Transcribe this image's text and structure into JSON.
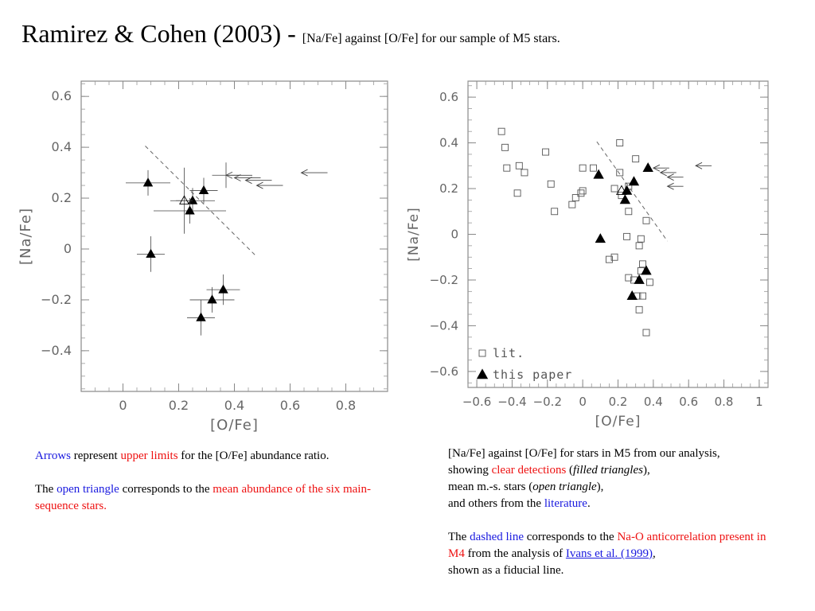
{
  "title": {
    "main": "Ramirez & Cohen (2003) - ",
    "sub": "[Na/Fe] against [O/Fe] for our sample of M5 stars."
  },
  "left_caption": {
    "p1": [
      "Arrows",
      " represent ",
      "upper limits",
      " for the [O/Fe] abundance ratio."
    ],
    "p2": [
      "The ",
      "open triangle",
      " corresponds to the ",
      "mean abundance of the six main-sequence stars."
    ]
  },
  "right_caption": {
    "p1": [
      "[Na/Fe] against [O/Fe] for stars in M5 from our analysis,",
      "showing ",
      "clear detections",
      " (",
      "filled triangles",
      "),",
      "mean m.-s. stars (",
      "open triangle",
      "),",
      "and others from the ",
      "literature",
      "."
    ],
    "p2": [
      "The ",
      "dashed line",
      " corresponds to the ",
      "Na-O anticorrelation present in M4",
      " from the analysis of ",
      "Ivans et al. (1999)",
      ",",
      "shown as a fiducial line."
    ]
  },
  "chart_data": [
    {
      "type": "scatter",
      "xlabel": "[O/Fe]",
      "ylabel": "[Na/Fe]",
      "xlim": [
        -0.15,
        0.95
      ],
      "ylim": [
        -0.56,
        0.66
      ],
      "xticks": [
        0,
        0.2,
        0.4,
        0.6,
        0.8
      ],
      "xtick_labels": [
        "0",
        "0.2",
        "0.4",
        "0.6",
        "0.8"
      ],
      "yticks": [
        -0.4,
        -0.2,
        0,
        0.2,
        0.4,
        0.6
      ],
      "ytick_labels": [
        "−0.4",
        "−0.2",
        "0",
        "0.2",
        "0.4",
        "0.6"
      ],
      "series": [
        {
          "marker": "filled-triangle",
          "points": [
            {
              "x": 0.09,
              "y": 0.26,
              "xerr": 0.08,
              "yerr": 0.05
            },
            {
              "x": 0.1,
              "y": -0.02,
              "xerr": 0.05,
              "yerr": 0.07
            },
            {
              "x": 0.25,
              "y": 0.19,
              "xerr": 0.08,
              "yerr": 0.05
            },
            {
              "x": 0.24,
              "y": 0.15,
              "xerr": 0.13,
              "yerr": 0.05
            },
            {
              "x": 0.29,
              "y": 0.23,
              "xerr": 0.05,
              "yerr": 0.05
            },
            {
              "x": 0.36,
              "y": -0.16,
              "xerr": 0.06,
              "yerr": 0.06
            },
            {
              "x": 0.32,
              "y": -0.2,
              "xerr": 0.08,
              "yerr": 0.05
            },
            {
              "x": 0.28,
              "y": -0.27,
              "xerr": 0.05,
              "yerr": 0.07
            }
          ]
        },
        {
          "marker": "open-triangle",
          "points": [
            {
              "x": 0.22,
              "y": 0.19,
              "xerr": 0.03,
              "yerr": 0.13
            }
          ]
        },
        {
          "marker": "upper-limit-arrow",
          "points": [
            {
              "x": 0.37,
              "y": 0.29,
              "xerr": 0.05,
              "yerr": 0.05
            },
            {
              "x": 0.4,
              "y": 0.28
            },
            {
              "x": 0.44,
              "y": 0.27
            },
            {
              "x": 0.48,
              "y": 0.25
            },
            {
              "x": 0.64,
              "y": 0.3
            }
          ]
        },
        {
          "marker": "dashed-line",
          "points": [
            {
              "x": 0.08,
              "y": 0.405
            },
            {
              "x": 0.48,
              "y": -0.03
            }
          ]
        }
      ]
    },
    {
      "type": "scatter",
      "xlabel": "[O/Fe]",
      "ylabel": "[Na/Fe]",
      "xlim": [
        -0.65,
        1.05
      ],
      "ylim": [
        -0.67,
        0.67
      ],
      "xticks": [
        -0.6,
        -0.4,
        -0.2,
        0,
        0.2,
        0.4,
        0.6,
        0.8,
        1
      ],
      "xtick_labels": [
        "−0.6",
        "−0.4",
        "−0.2",
        "0",
        "0.2",
        "0.4",
        "0.6",
        "0.8",
        "1"
      ],
      "yticks": [
        -0.6,
        -0.4,
        -0.2,
        0,
        0.2,
        0.4,
        0.6
      ],
      "ytick_labels": [
        "−0.6",
        "−0.4",
        "−0.2",
        "0",
        "0.2",
        "0.4",
        "0.6"
      ],
      "legend_position": "bottom-left",
      "series": [
        {
          "name": "lit.",
          "marker": "open-square",
          "points": [
            {
              "x": -0.46,
              "y": 0.45
            },
            {
              "x": -0.44,
              "y": 0.38
            },
            {
              "x": -0.43,
              "y": 0.29
            },
            {
              "x": -0.36,
              "y": 0.3
            },
            {
              "x": -0.33,
              "y": 0.27
            },
            {
              "x": -0.37,
              "y": 0.18
            },
            {
              "x": -0.21,
              "y": 0.36
            },
            {
              "x": -0.18,
              "y": 0.22
            },
            {
              "x": -0.16,
              "y": 0.1
            },
            {
              "x": -0.06,
              "y": 0.13
            },
            {
              "x": -0.04,
              "y": 0.16
            },
            {
              "x": -0.01,
              "y": 0.18
            },
            {
              "x": 0.0,
              "y": 0.29
            },
            {
              "x": 0.06,
              "y": 0.29
            },
            {
              "x": 0.0,
              "y": 0.19
            },
            {
              "x": 0.21,
              "y": 0.4
            },
            {
              "x": 0.3,
              "y": 0.33
            },
            {
              "x": 0.18,
              "y": 0.2
            },
            {
              "x": 0.21,
              "y": 0.27
            },
            {
              "x": 0.26,
              "y": 0.21
            },
            {
              "x": 0.22,
              "y": 0.17
            },
            {
              "x": 0.26,
              "y": 0.1
            },
            {
              "x": 0.36,
              "y": 0.06
            },
            {
              "x": 0.25,
              "y": -0.01
            },
            {
              "x": 0.32,
              "y": -0.05
            },
            {
              "x": 0.33,
              "y": -0.02
            },
            {
              "x": 0.18,
              "y": -0.1
            },
            {
              "x": 0.15,
              "y": -0.11
            },
            {
              "x": 0.26,
              "y": -0.19
            },
            {
              "x": 0.34,
              "y": -0.13
            },
            {
              "x": 0.29,
              "y": -0.2
            },
            {
              "x": 0.33,
              "y": -0.16
            },
            {
              "x": 0.38,
              "y": -0.21
            },
            {
              "x": 0.31,
              "y": -0.27
            },
            {
              "x": 0.34,
              "y": -0.27
            },
            {
              "x": 0.32,
              "y": -0.33
            },
            {
              "x": 0.36,
              "y": -0.43
            }
          ]
        },
        {
          "name": "this paper",
          "marker": "filled-triangle",
          "points": [
            {
              "x": 0.09,
              "y": 0.26
            },
            {
              "x": 0.1,
              "y": -0.02
            },
            {
              "x": 0.25,
              "y": 0.19
            },
            {
              "x": 0.24,
              "y": 0.15
            },
            {
              "x": 0.29,
              "y": 0.23
            },
            {
              "x": 0.37,
              "y": 0.29
            },
            {
              "x": 0.36,
              "y": -0.16
            },
            {
              "x": 0.32,
              "y": -0.2
            },
            {
              "x": 0.28,
              "y": -0.27
            }
          ]
        },
        {
          "marker": "open-triangle",
          "points": [
            {
              "x": 0.22,
              "y": 0.19
            }
          ]
        },
        {
          "marker": "upper-limit-arrow",
          "points": [
            {
              "x": 0.4,
              "y": 0.29
            },
            {
              "x": 0.44,
              "y": 0.27
            },
            {
              "x": 0.48,
              "y": 0.25
            },
            {
              "x": 0.48,
              "y": 0.21
            },
            {
              "x": 0.64,
              "y": 0.3
            }
          ]
        },
        {
          "marker": "dashed-line",
          "points": [
            {
              "x": 0.08,
              "y": 0.405
            },
            {
              "x": 0.48,
              "y": -0.03
            }
          ]
        }
      ]
    }
  ]
}
